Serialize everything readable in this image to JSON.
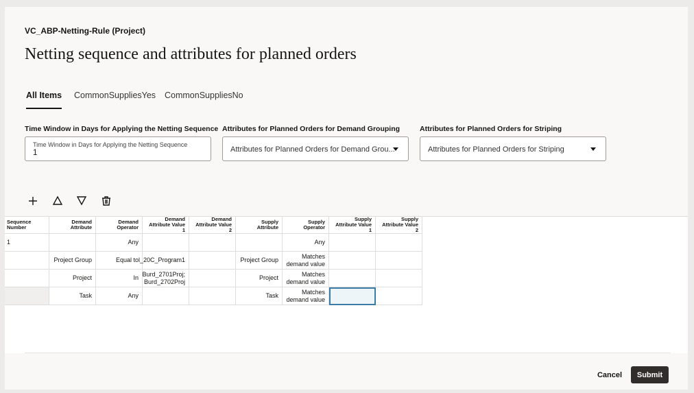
{
  "header": {
    "subtitle": "VC_ABP-Netting-Rule (Project)",
    "title": "Netting sequence and attributes for planned orders"
  },
  "tabs": [
    "All Items",
    "CommonSuppliesYes",
    "CommonSuppliesNo"
  ],
  "fields": [
    {
      "label": "Time Window in Days for Applying the Netting Sequence",
      "inner_label": "Time Window in Days for Applying the Netting Sequence",
      "value": "1"
    },
    {
      "label": "Attributes for Planned Orders for Demand Grouping",
      "placeholder": "Attributes for Planned Orders for Demand Grou..."
    },
    {
      "label": "Attributes for Planned Orders for Striping",
      "placeholder": "Attributes for Planned Orders for Striping"
    }
  ],
  "table": {
    "columns": [
      "Sequence Number",
      "Demand Attribute",
      "Demand Operator",
      "Demand Attribute Value 1",
      "Demand Attribute Value 2",
      "Supply Attribute",
      "Supply Operator",
      "Supply Attribute Value 1",
      "Supply Attribute Value 2"
    ],
    "rows": [
      [
        "1",
        null,
        "Any",
        null,
        null,
        null,
        "Any",
        null,
        null
      ],
      [
        null,
        "Project Group",
        "Equal to",
        "l_20C_Program1",
        null,
        "Project Group",
        "Matches demand value",
        null,
        null
      ],
      [
        null,
        "Project",
        "In",
        "Burd_2701Proj; Burd_2702Proj",
        null,
        "Project",
        "Matches demand value",
        null,
        null
      ],
      [
        null,
        "Task",
        "Any",
        null,
        null,
        "Task",
        "Matches demand value",
        null,
        null
      ]
    ]
  },
  "buttons": {
    "cancel": "Cancel",
    "submit": "Submit"
  }
}
